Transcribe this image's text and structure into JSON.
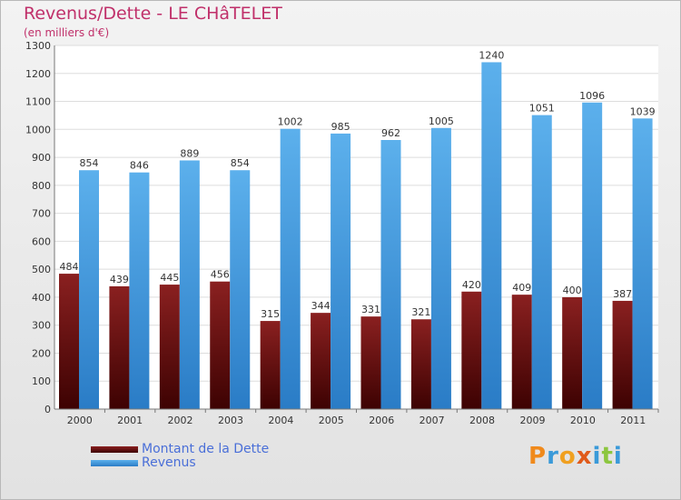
{
  "title": "Revenus/Dette - LE CHâTELET",
  "subtitle": "(en milliers d'€)",
  "colors": {
    "title": "#c0306a",
    "dette_top": "#8a2020",
    "dette_bottom": "#3d0202",
    "revenus_top": "#5cb0ec",
    "revenus_bottom": "#2a7cc6",
    "legend_text": "#4a6fd8"
  },
  "chart_data": {
    "type": "bar",
    "categories": [
      "2000",
      "2001",
      "2002",
      "2003",
      "2004",
      "2005",
      "2006",
      "2007",
      "2008",
      "2009",
      "2010",
      "2011"
    ],
    "series": [
      {
        "name": "Montant de la Dette",
        "values": [
          484,
          439,
          445,
          456,
          315,
          344,
          331,
          321,
          420,
          409,
          400,
          387
        ]
      },
      {
        "name": "Revenus",
        "values": [
          854,
          846,
          889,
          854,
          1002,
          985,
          962,
          1005,
          1240,
          1051,
          1096,
          1039
        ]
      }
    ],
    "title": "Revenus/Dette - LE CHâTELET",
    "ylabel": "(en milliers d'€)",
    "ylim": [
      0,
      1300
    ],
    "yticks": [
      0,
      100,
      200,
      300,
      400,
      500,
      600,
      700,
      800,
      900,
      1000,
      1100,
      1200,
      1300
    ],
    "grid": true,
    "legend_position": "bottom-left"
  },
  "legend": [
    {
      "label": "Montant de la Dette",
      "icon": "dark-red-bar-swatch"
    },
    {
      "label": "Revenus",
      "icon": "blue-bar-swatch"
    }
  ],
  "logo": {
    "text": "Proxiti",
    "letters": [
      "P",
      "r",
      "o",
      "x",
      "i",
      "t",
      "i"
    ]
  }
}
